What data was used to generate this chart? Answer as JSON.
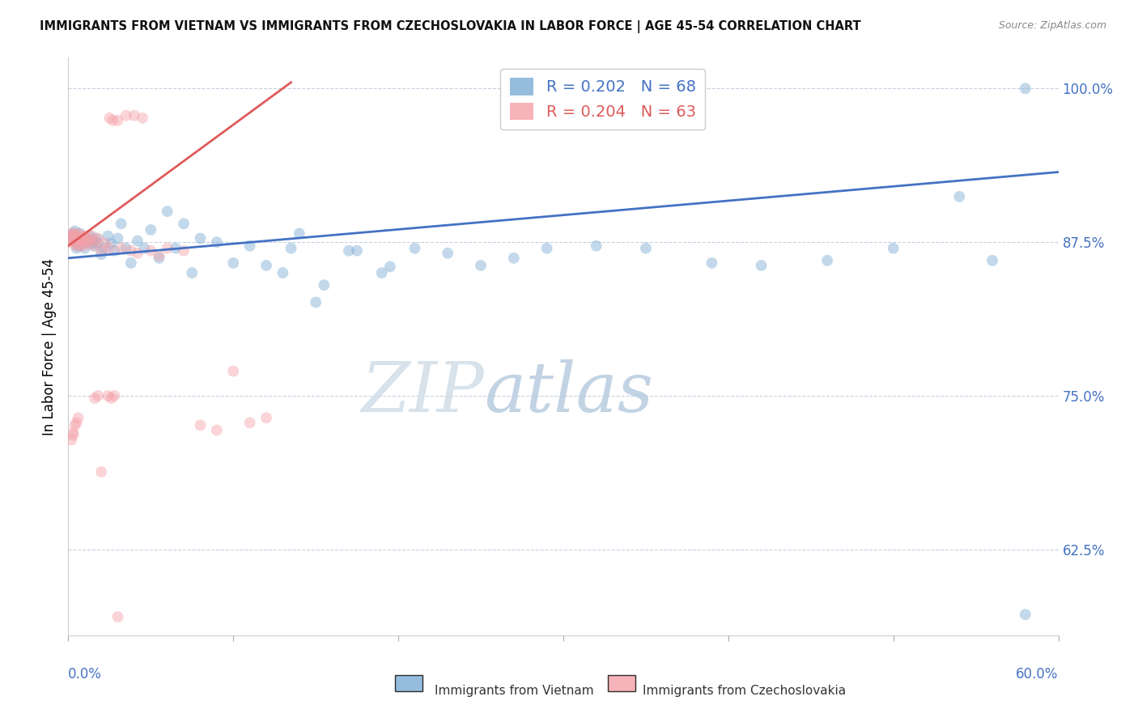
{
  "title": "IMMIGRANTS FROM VIETNAM VS IMMIGRANTS FROM CZECHOSLOVAKIA IN LABOR FORCE | AGE 45-54 CORRELATION CHART",
  "source": "Source: ZipAtlas.com",
  "ylabel": "In Labor Force | Age 45-54",
  "watermark_zip": "ZIP",
  "watermark_atlas": "atlas",
  "legend_lines": [
    {
      "label": "R = 0.202   N = 68",
      "color": "#4472c4"
    },
    {
      "label": "R = 0.204   N = 63",
      "color": "#e05a5a"
    }
  ],
  "bottom_legend": [
    {
      "label": "Immigrants from Vietnam",
      "color": "#7bacd4"
    },
    {
      "label": "Immigrants from Czechoslovakia",
      "color": "#f4a0a8"
    }
  ],
  "xmin": 0.0,
  "xmax": 0.6,
  "ymin": 0.555,
  "ymax": 1.025,
  "yticks": [
    0.625,
    0.75,
    0.875,
    1.0
  ],
  "ytick_labels": [
    "62.5%",
    "75.0%",
    "87.5%",
    "100.0%"
  ],
  "xtick_left_label": "0.0%",
  "xtick_right_label": "60.0%",
  "vietnam_color": "#7bacd4",
  "czech_color": "#f4a0a8",
  "vietnam_line_color": "#4472c4",
  "czech_line_color": "#e05a5a",
  "vietnam_line_x": [
    0.0,
    0.6
  ],
  "vietnam_line_y": [
    0.862,
    0.932
  ],
  "czech_line_x": [
    0.0,
    0.135
  ],
  "czech_line_y": [
    0.872,
    1.005
  ],
  "marker_size": 100,
  "alpha": 0.45,
  "tick_color": "#4472c4",
  "grid_color": "#c8d0e0",
  "background_color": "#ffffff",
  "vietnam_x": [
    0.001,
    0.002,
    0.003,
    0.003,
    0.004,
    0.004,
    0.005,
    0.005,
    0.006,
    0.007,
    0.008,
    0.009,
    0.009,
    0.01,
    0.011,
    0.012,
    0.013,
    0.014,
    0.015,
    0.016,
    0.017,
    0.018,
    0.02,
    0.022,
    0.024,
    0.026,
    0.028,
    0.03,
    0.032,
    0.035,
    0.038,
    0.042,
    0.046,
    0.05,
    0.055,
    0.06,
    0.065,
    0.07,
    0.075,
    0.08,
    0.09,
    0.1,
    0.11,
    0.12,
    0.13,
    0.14,
    0.15,
    0.17,
    0.19,
    0.21,
    0.23,
    0.25,
    0.27,
    0.29,
    0.32,
    0.35,
    0.39,
    0.42,
    0.46,
    0.5,
    0.54,
    0.56,
    0.58,
    0.195,
    0.175,
    0.155,
    0.135,
    0.58
  ],
  "vietnam_y": [
    0.878,
    0.88,
    0.878,
    0.882,
    0.876,
    0.884,
    0.87,
    0.876,
    0.872,
    0.882,
    0.878,
    0.874,
    0.876,
    0.87,
    0.878,
    0.876,
    0.88,
    0.874,
    0.876,
    0.872,
    0.878,
    0.874,
    0.865,
    0.87,
    0.88,
    0.874,
    0.868,
    0.878,
    0.89,
    0.87,
    0.858,
    0.876,
    0.87,
    0.885,
    0.862,
    0.9,
    0.87,
    0.89,
    0.85,
    0.878,
    0.875,
    0.858,
    0.872,
    0.856,
    0.85,
    0.882,
    0.826,
    0.868,
    0.85,
    0.87,
    0.866,
    0.856,
    0.862,
    0.87,
    0.872,
    0.87,
    0.858,
    0.856,
    0.86,
    0.87,
    0.912,
    0.86,
    0.572,
    0.855,
    0.868,
    0.84,
    0.87,
    1.0
  ],
  "czech_x": [
    0.001,
    0.001,
    0.002,
    0.002,
    0.003,
    0.003,
    0.003,
    0.004,
    0.004,
    0.005,
    0.005,
    0.005,
    0.006,
    0.006,
    0.007,
    0.007,
    0.008,
    0.008,
    0.009,
    0.009,
    0.01,
    0.01,
    0.011,
    0.012,
    0.013,
    0.014,
    0.015,
    0.016,
    0.018,
    0.02,
    0.022,
    0.025,
    0.025,
    0.027,
    0.03,
    0.032,
    0.035,
    0.038,
    0.04,
    0.042,
    0.045,
    0.05,
    0.055,
    0.06,
    0.07,
    0.08,
    0.09,
    0.1,
    0.11,
    0.12,
    0.024,
    0.026,
    0.018,
    0.016,
    0.028,
    0.002,
    0.003,
    0.003,
    0.004,
    0.005,
    0.006,
    0.02,
    0.03
  ],
  "czech_y": [
    0.876,
    0.88,
    0.878,
    0.882,
    0.874,
    0.878,
    0.882,
    0.876,
    0.88,
    0.872,
    0.876,
    0.88,
    0.878,
    0.882,
    0.872,
    0.878,
    0.876,
    0.88,
    0.872,
    0.878,
    0.876,
    0.88,
    0.874,
    0.878,
    0.876,
    0.88,
    0.872,
    0.876,
    0.878,
    0.868,
    0.874,
    0.87,
    0.976,
    0.974,
    0.974,
    0.87,
    0.978,
    0.868,
    0.978,
    0.866,
    0.976,
    0.868,
    0.864,
    0.87,
    0.868,
    0.726,
    0.722,
    0.77,
    0.728,
    0.732,
    0.75,
    0.748,
    0.75,
    0.748,
    0.75,
    0.714,
    0.72,
    0.718,
    0.726,
    0.728,
    0.732,
    0.688,
    0.57
  ]
}
